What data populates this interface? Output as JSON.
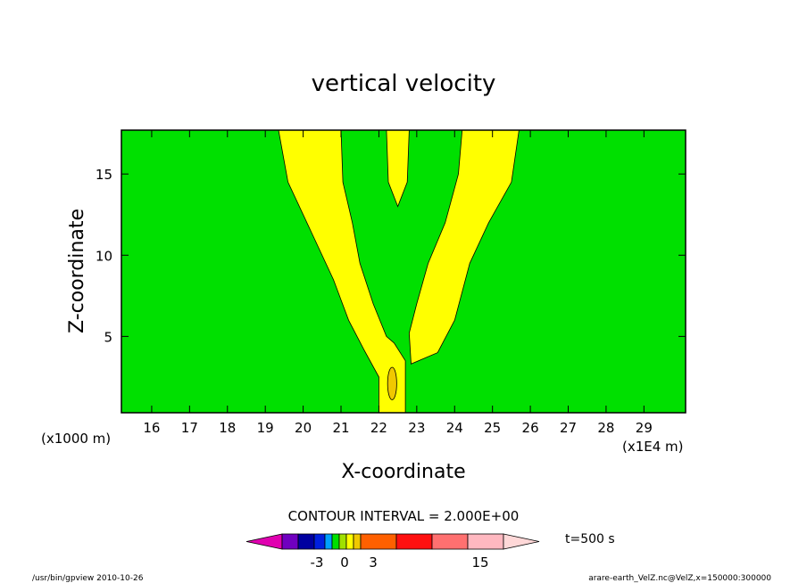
{
  "chart_data": {
    "type": "contour",
    "title": "vertical velocity",
    "xlabel": "X-coordinate",
    "ylabel": "Z-coordinate",
    "x_units": "(x1E4 m)",
    "y_units": "(x1000 m)",
    "xlim": [
      15.2,
      30.1
    ],
    "ylim": [
      0.3,
      17.7
    ],
    "x_ticks": [
      16,
      17,
      18,
      19,
      20,
      21,
      22,
      23,
      24,
      25,
      26,
      27,
      28,
      29
    ],
    "y_ticks": [
      5,
      10,
      15
    ],
    "contour_interval_text": "CONTOUR INTERVAL = 2.000E+00",
    "time_label": "t=500 s",
    "background_level_color": "#00e000",
    "plumes": [
      {
        "name": "left plume",
        "color": "#ffff00",
        "left_edge": [
          [
            19.35,
            17.7
          ],
          [
            19.6,
            14.5
          ],
          [
            20.2,
            11.5
          ],
          [
            20.8,
            8.5
          ],
          [
            21.2,
            6.0
          ],
          [
            21.6,
            4.2
          ],
          [
            22.0,
            2.5
          ],
          [
            22.0,
            0.3
          ]
        ],
        "right_edge": [
          [
            21.0,
            17.7
          ],
          [
            21.05,
            14.5
          ],
          [
            21.3,
            12.0
          ],
          [
            21.5,
            9.5
          ],
          [
            21.85,
            7.0
          ],
          [
            22.2,
            5.0
          ],
          [
            22.4,
            4.6
          ],
          [
            22.7,
            3.5
          ],
          [
            22.7,
            0.3
          ]
        ]
      },
      {
        "name": "right plume",
        "color": "#ffff00",
        "left_edge": [
          [
            24.2,
            17.7
          ],
          [
            24.1,
            15.0
          ],
          [
            23.75,
            12.0
          ],
          [
            23.3,
            9.5
          ],
          [
            23.0,
            7.0
          ],
          [
            22.8,
            5.2
          ],
          [
            22.85,
            3.3
          ]
        ],
        "right_edge": [
          [
            25.7,
            17.7
          ],
          [
            25.5,
            14.5
          ],
          [
            24.9,
            12.0
          ],
          [
            24.4,
            9.5
          ],
          [
            24.0,
            6.0
          ],
          [
            23.55,
            4.0
          ],
          [
            22.85,
            3.3
          ]
        ]
      },
      {
        "name": "upper center",
        "color": "#ffff00",
        "left_edge": [
          [
            22.2,
            17.7
          ],
          [
            22.25,
            14.5
          ],
          [
            22.5,
            13.0
          ]
        ],
        "right_edge": [
          [
            22.8,
            17.7
          ],
          [
            22.75,
            14.5
          ],
          [
            22.5,
            13.0
          ]
        ]
      }
    ],
    "core": {
      "color": "#f0c800",
      "x": 22.35,
      "y": 2.1,
      "rx": 0.12,
      "ry": 1.0
    },
    "colorbar": {
      "colors": [
        "#e000b0",
        "#7000c0",
        "#0000a0",
        "#0020e0",
        "#00a0ff",
        "#00e000",
        "#a0e000",
        "#ffff00",
        "#f0c800",
        "#ff6000",
        "#ff1010",
        "#ff7070",
        "#ffb8c0",
        "#ffd8d8"
      ],
      "tick_labels": [
        "-3",
        "0",
        "3",
        "15"
      ]
    },
    "footer_left": "/usr/bin/gpview  2010-10-26",
    "footer_right": "arare-earth_VelZ.nc@VelZ,x=150000:300000"
  }
}
